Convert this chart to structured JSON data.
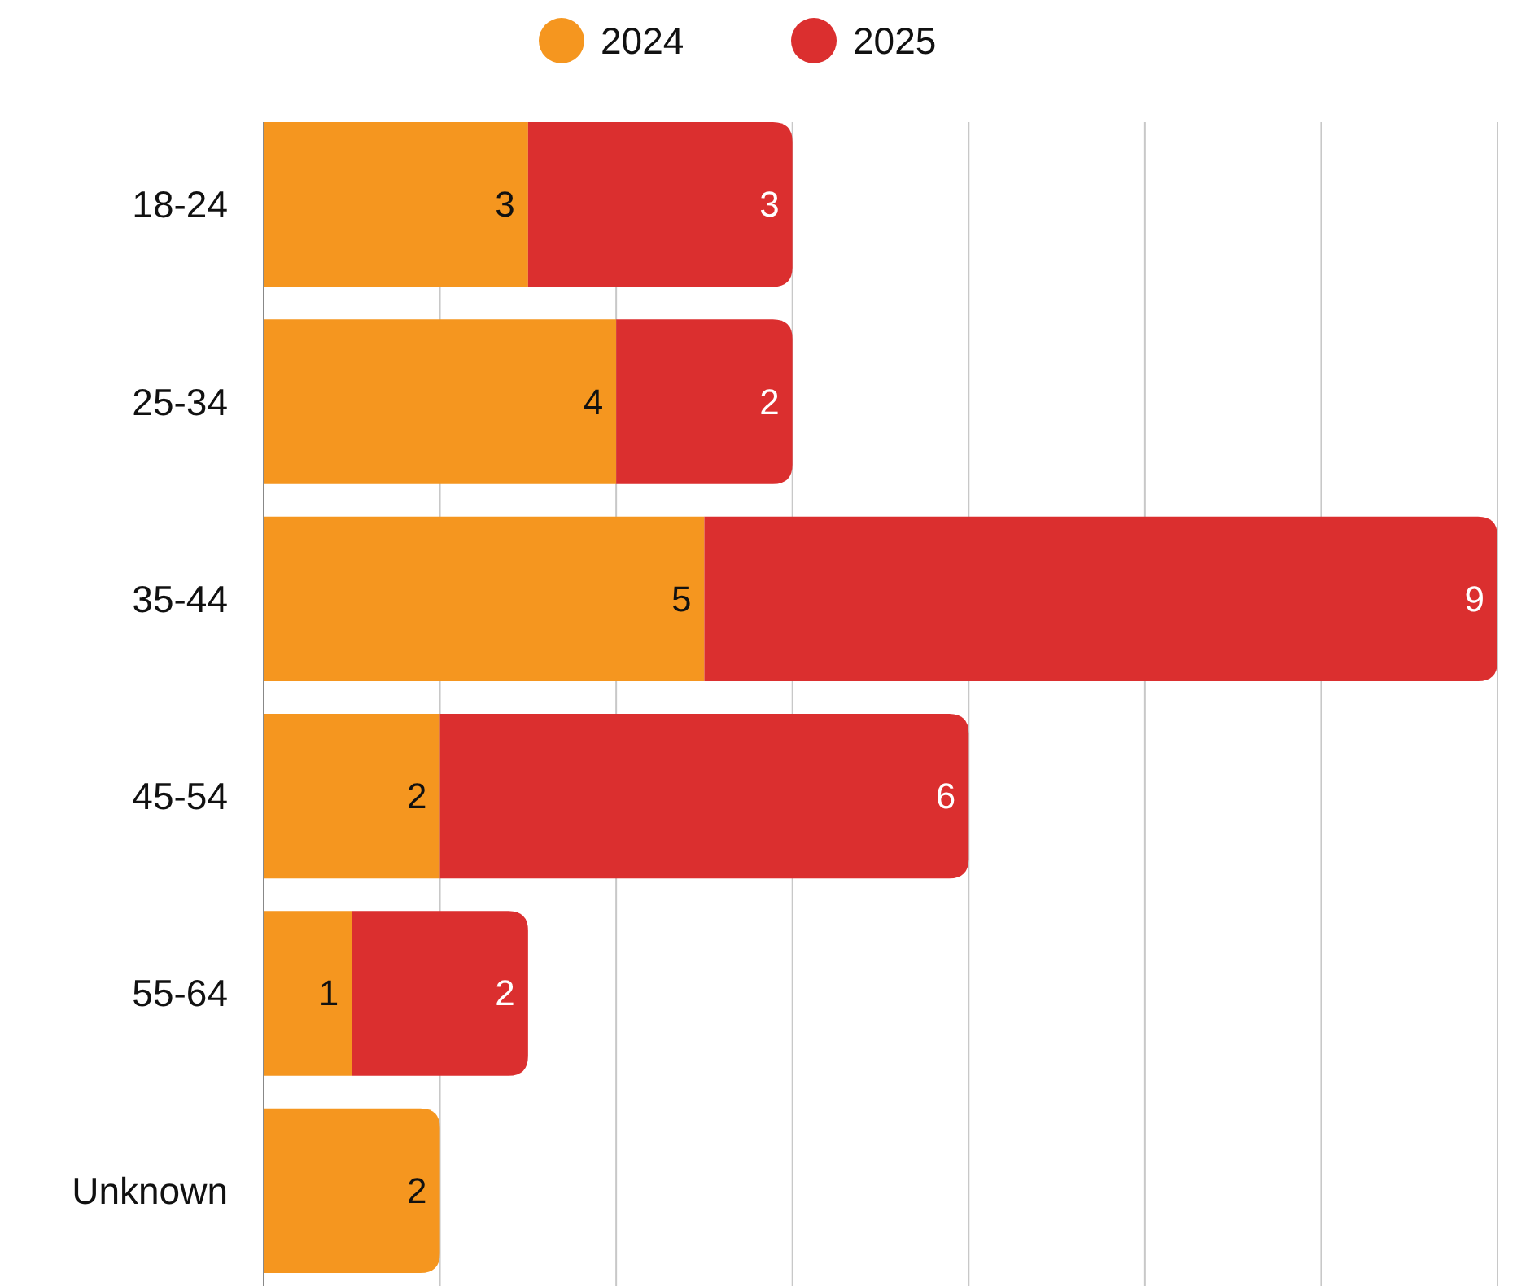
{
  "chart_data": {
    "type": "bar",
    "orientation": "horizontal",
    "stacked": true,
    "categories": [
      "18-24",
      "25-34",
      "35-44",
      "45-54",
      "55-64",
      "Unknown"
    ],
    "series": [
      {
        "name": "2024",
        "color": "#f5961f",
        "values": [
          3,
          4,
          5,
          2,
          1,
          2
        ]
      },
      {
        "name": "2025",
        "color": "#db2f2f",
        "values": [
          3,
          2,
          9,
          6,
          2,
          null
        ]
      }
    ],
    "xlim": [
      0,
      14
    ],
    "xticks": [
      {
        "value": 0,
        "label": null
      },
      {
        "value": 2,
        "label": null
      },
      {
        "value": 4,
        "label": null
      },
      {
        "value": 6,
        "label": null
      },
      {
        "value": 8,
        "label": null
      },
      {
        "value": 10,
        "label": null
      },
      {
        "value": 12,
        "label": null
      },
      {
        "value": 14,
        "label": null
      }
    ],
    "tick_labels": "y",
    "grid": "x",
    "legend": "top",
    "data_labels": true
  }
}
